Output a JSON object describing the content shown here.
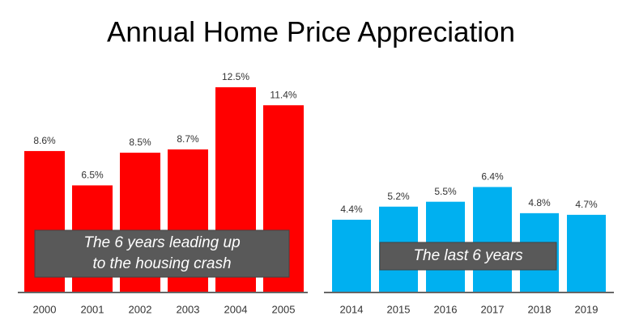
{
  "title": "Annual Home Price Appreciation",
  "chart_data": [
    {
      "type": "bar",
      "categories": [
        "2000",
        "2001",
        "2002",
        "2003",
        "2004",
        "2005"
      ],
      "values": [
        8.6,
        6.5,
        8.5,
        8.7,
        12.5,
        11.4
      ],
      "value_labels": [
        "8.6%",
        "6.5%",
        "8.5%",
        "8.7%",
        "12.5%",
        "11.4%"
      ],
      "color": "#ff0000",
      "annotation": [
        "The 6 years leading up",
        "to the housing crash"
      ]
    },
    {
      "type": "bar",
      "categories": [
        "2014",
        "2015",
        "2016",
        "2017",
        "2018",
        "2019"
      ],
      "values": [
        4.4,
        5.2,
        5.5,
        6.4,
        4.8,
        4.7
      ],
      "value_labels": [
        "4.4%",
        "5.2%",
        "5.5%",
        "6.4%",
        "4.8%",
        "4.7%"
      ],
      "color": "#00b0f0",
      "annotation": [
        "The last 6 years"
      ]
    }
  ]
}
